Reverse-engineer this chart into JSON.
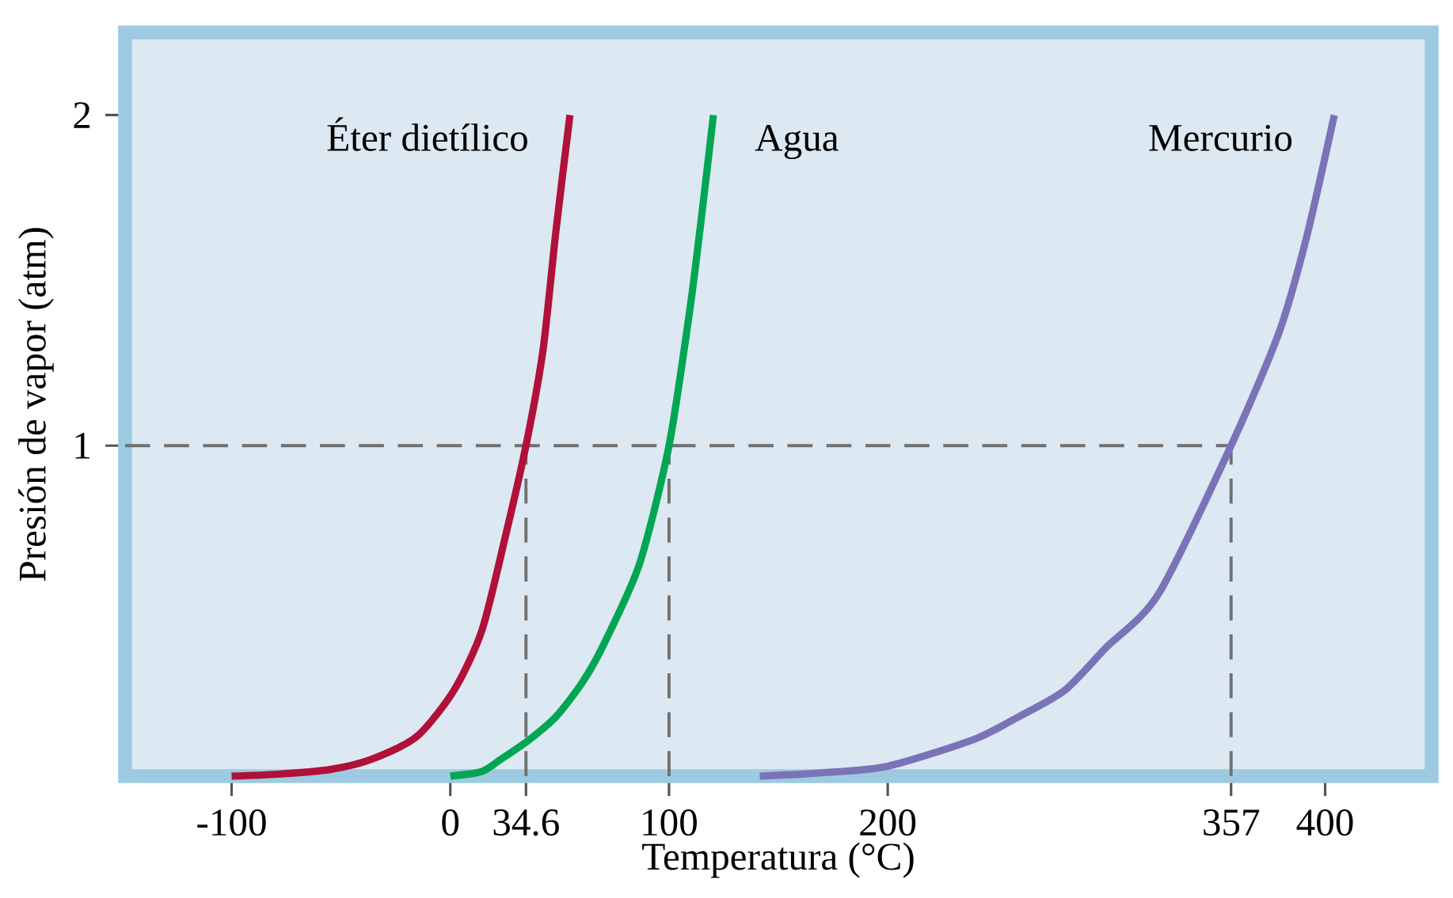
{
  "chart_data": {
    "type": "line",
    "xlabel": "Temperatura (°C)",
    "ylabel": "Presión de vapor (atm)",
    "xlim": [
      -148.7,
      448.7
    ],
    "ylim": [
      0,
      2.25
    ],
    "xticks": [
      -100,
      0,
      34.6,
      100,
      200,
      357,
      400
    ],
    "yticks": [
      1,
      2
    ],
    "grid": false,
    "legend": false,
    "marker": "none",
    "line_style": "solid",
    "series": [
      {
        "name": "Éter dietílico",
        "color": "#b0103a",
        "x": [
          -100,
          -78.8,
          -55,
          -36.4,
          -15.3,
          1.7,
          14.4,
          25,
          34.6,
          42.4,
          48.3,
          54.7
        ],
        "values": [
          0,
          0.006,
          0.02,
          0.05,
          0.12,
          0.26,
          0.44,
          0.72,
          1.0,
          1.29,
          1.65,
          2.0
        ]
      },
      {
        "name": "Agua",
        "color": "#00a651",
        "x": [
          0,
          14.4,
          22.9,
          36,
          48.3,
          60,
          69.5,
          86.4,
          100,
          109.7,
          115,
          120.3
        ],
        "values": [
          0,
          0.014,
          0.05,
          0.11,
          0.18,
          0.28,
          0.39,
          0.64,
          1.0,
          1.42,
          1.7,
          2.0
        ]
      },
      {
        "name": "Mercurio",
        "color": "#7b73b8",
        "x": [
          141.5,
          170,
          200,
          239,
          260,
          281,
          300,
          323.7,
          357,
          378.8,
          391.5,
          404.2
        ],
        "values": [
          0,
          0.01,
          0.03,
          0.11,
          0.18,
          0.26,
          0.39,
          0.55,
          1.0,
          1.34,
          1.63,
          2.0
        ]
      }
    ],
    "ref_lines": [
      {
        "axis": "y",
        "value": 1,
        "color": "#707070",
        "line_style": "dashed"
      },
      {
        "axis": "x",
        "value": 34.6,
        "color": "#707070",
        "line_style": "dashed"
      },
      {
        "axis": "x",
        "value": 100,
        "color": "#707070",
        "line_style": "dashed"
      },
      {
        "axis": "x",
        "value": 357,
        "color": "#707070",
        "line_style": "dashed"
      }
    ]
  }
}
